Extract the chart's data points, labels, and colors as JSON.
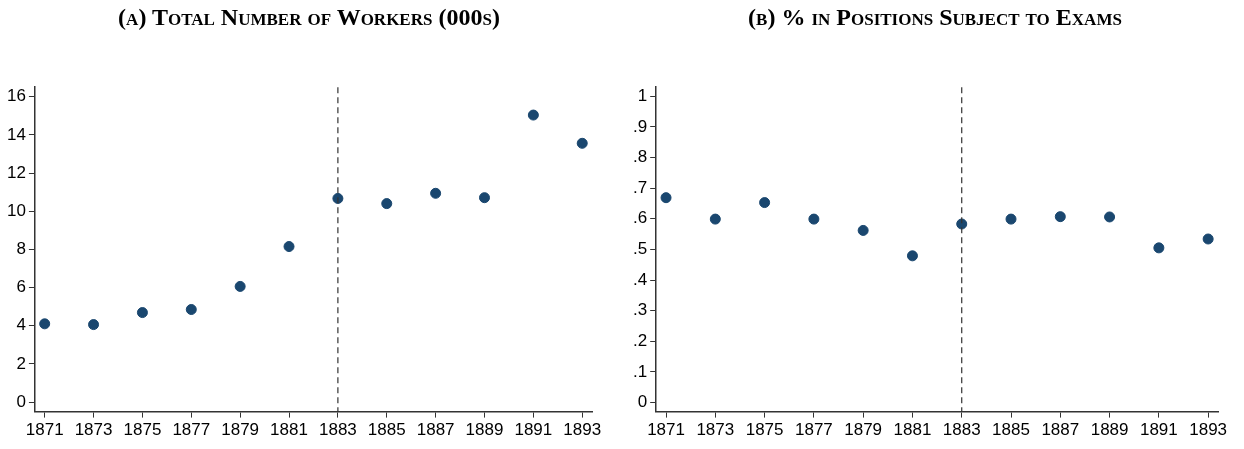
{
  "chart_data": [
    {
      "type": "scatter",
      "title": "(a) Total Number of Workers (000s)",
      "x": [
        1871,
        1873,
        1875,
        1877,
        1879,
        1881,
        1883,
        1885,
        1887,
        1889,
        1891,
        1893
      ],
      "series": [
        {
          "color": "#1a476f",
          "values": [
            4.1,
            4.06,
            4.69,
            4.85,
            6.06,
            8.15,
            10.67,
            10.4,
            10.94,
            10.71,
            15.04,
            13.56
          ]
        }
      ],
      "xlim": [
        1870.6,
        1893.4
      ],
      "xticks": [
        1871,
        1873,
        1875,
        1877,
        1879,
        1881,
        1883,
        1885,
        1887,
        1889,
        1891,
        1893
      ],
      "ylim": [
        -0.5,
        16.5
      ],
      "yticks": [
        0,
        2,
        4,
        6,
        8,
        10,
        12,
        14,
        16
      ],
      "ref_lines": [
        {
          "axis": "x",
          "value": 1883,
          "color": "#333333",
          "line_style": "dashed"
        }
      ],
      "marker": "circle",
      "legend": false,
      "grid": false
    },
    {
      "type": "scatter",
      "title": "(b) % in Positions Subject to Exams",
      "x": [
        1871,
        1873,
        1875,
        1877,
        1879,
        1881,
        1883,
        1885,
        1887,
        1889,
        1891,
        1893
      ],
      "series": [
        {
          "color": "#1a476f",
          "values": [
            0.669,
            0.599,
            0.653,
            0.599,
            0.562,
            0.479,
            0.583,
            0.599,
            0.607,
            0.606,
            0.505,
            0.534
          ]
        }
      ],
      "xlim": [
        1870.6,
        1893.4
      ],
      "xticks": [
        1871,
        1873,
        1875,
        1877,
        1879,
        1881,
        1883,
        1885,
        1887,
        1889,
        1891,
        1893
      ],
      "ylim": [
        -0.03,
        1.03
      ],
      "yticks": [
        0,
        {
          "value": 0.1,
          "label": ".1"
        },
        {
          "value": 0.2,
          "label": ".2"
        },
        {
          "value": 0.3,
          "label": ".3"
        },
        {
          "value": 0.4,
          "label": ".4"
        },
        {
          "value": 0.5,
          "label": ".5"
        },
        {
          "value": 0.6,
          "label": ".6"
        },
        {
          "value": 0.7,
          "label": ".7"
        },
        {
          "value": 0.8,
          "label": ".8"
        },
        {
          "value": 0.9,
          "label": ".9"
        },
        1
      ],
      "ref_lines": [
        {
          "axis": "x",
          "value": 1883,
          "color": "#333333",
          "line_style": "dashed"
        }
      ],
      "marker": "circle",
      "legend": false,
      "grid": false
    }
  ]
}
